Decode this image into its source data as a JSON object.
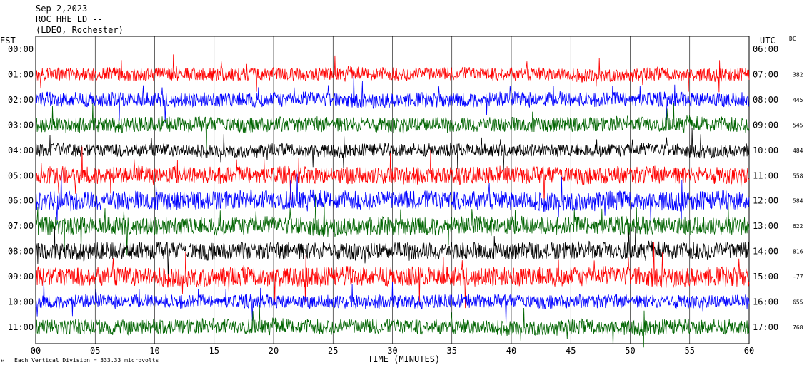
{
  "header": {
    "date": "Sep 2,2023",
    "station": "ROC HHE LD --",
    "network": "(LDEO, Rochester)"
  },
  "labels": {
    "left_zone": "EST",
    "right_zone": "UTC",
    "dc": "DC",
    "xlabel": "TIME (MINUTES)",
    "footer": "Each Vertical Division =  333.33 microvolts"
  },
  "colors": [
    "#ff0000",
    "#0000ff",
    "#006400",
    "#000000"
  ],
  "chart_data": {
    "type": "line",
    "title": "ROC HHE LD --",
    "xlabel": "TIME (MINUTES)",
    "xlim": [
      0,
      60
    ],
    "x_ticks": [
      "00",
      "05",
      "10",
      "15",
      "20",
      "25",
      "30",
      "35",
      "40",
      "45",
      "50",
      "55",
      "60"
    ],
    "grid": true,
    "traces": [
      {
        "est": "00:00",
        "utc": "06:00",
        "dc": "",
        "color": "#ff0000"
      },
      {
        "est": "01:00",
        "utc": "07:00",
        "dc": "382",
        "color": "#ff0000"
      },
      {
        "est": "02:00",
        "utc": "08:00",
        "dc": "445",
        "color": "#0000ff"
      },
      {
        "est": "03:00",
        "utc": "09:00",
        "dc": "545",
        "color": "#006400"
      },
      {
        "est": "04:00",
        "utc": "10:00",
        "dc": "484",
        "color": "#000000"
      },
      {
        "est": "05:00",
        "utc": "11:00",
        "dc": "558",
        "color": "#ff0000"
      },
      {
        "est": "06:00",
        "utc": "12:00",
        "dc": "584",
        "color": "#0000ff"
      },
      {
        "est": "07:00",
        "utc": "13:00",
        "dc": "622",
        "color": "#006400"
      },
      {
        "est": "08:00",
        "utc": "14:00",
        "dc": "816",
        "color": "#000000"
      },
      {
        "est": "09:00",
        "utc": "15:00",
        "dc": "-77",
        "color": "#ff0000"
      },
      {
        "est": "10:00",
        "utc": "16:00",
        "dc": "655",
        "color": "#0000ff"
      },
      {
        "est": "11:00",
        "utc": "17:00",
        "dc": "768",
        "color": "#006400"
      }
    ]
  }
}
